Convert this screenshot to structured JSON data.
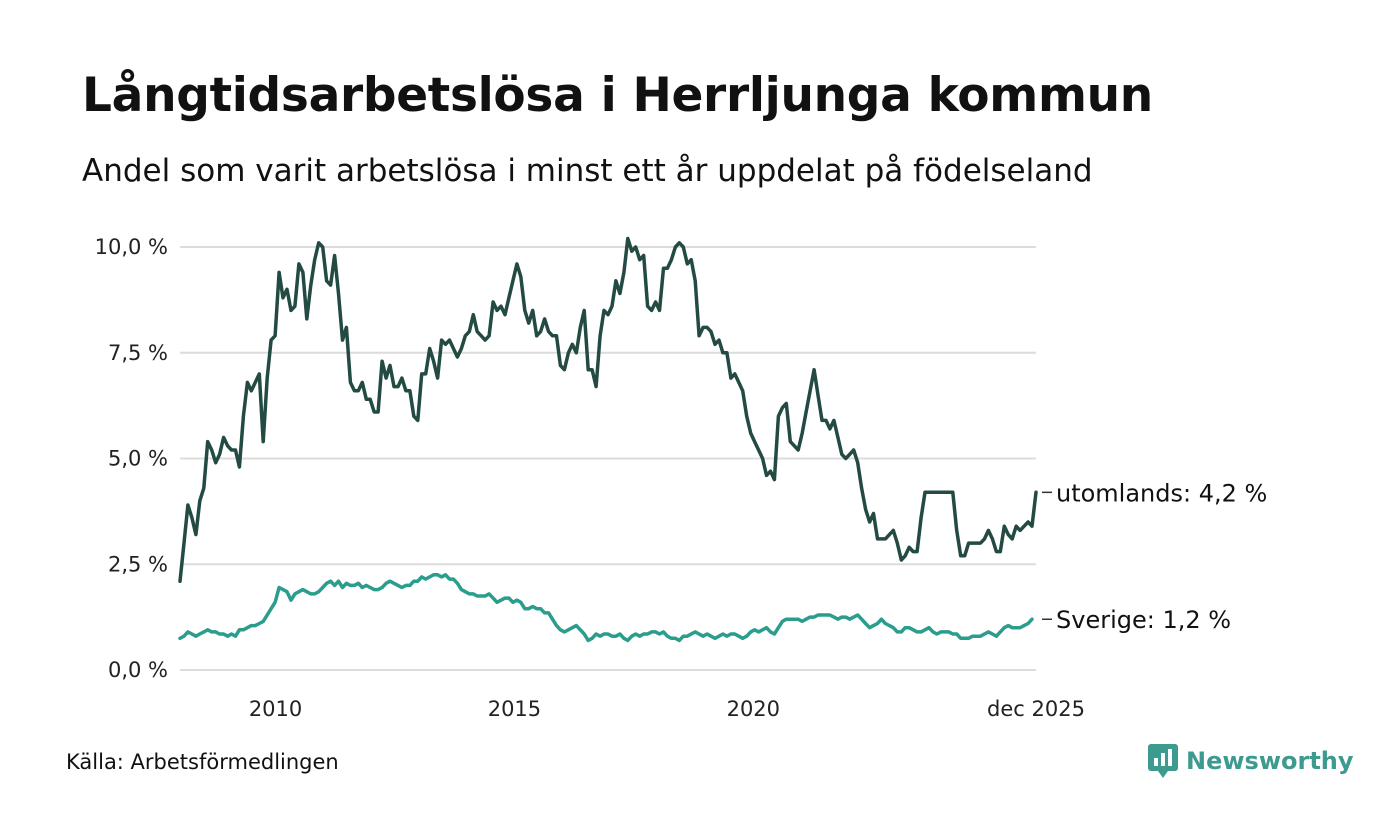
{
  "title": "Långtidsarbetslösa i Herrljunga kommun",
  "subtitle": "Andel som varit arbetslösa i minst ett år uppdelat på födelseland",
  "source": "Källa: Arbetsförmedlingen",
  "brand": "Newsworthy",
  "colors": {
    "utomlands": "#244a44",
    "sverige": "#2a9d8c",
    "grid": "#dcdcdc",
    "brand": "#3d9a8e"
  },
  "chart_data": {
    "type": "line",
    "title": "Långtidsarbetslösa i Herrljunga kommun",
    "xlabel": "",
    "ylabel": "",
    "x_start": "2008-01",
    "x_end": "2025-12",
    "frequency": "monthly",
    "xlim": [
      2008.0,
      2025.917
    ],
    "ylim": [
      0,
      10
    ],
    "y_ticks": [
      {
        "value": 0,
        "label": "0,0 %"
      },
      {
        "value": 2.5,
        "label": "2,5 %"
      },
      {
        "value": 5,
        "label": "5,0 %"
      },
      {
        "value": 7.5,
        "label": "7,5 %"
      },
      {
        "value": 10,
        "label": "10,0 %"
      }
    ],
    "x_ticks": [
      {
        "value": 2010,
        "label": "2010"
      },
      {
        "value": 2015,
        "label": "2015"
      },
      {
        "value": 2020,
        "label": "2020"
      },
      {
        "value": 2025.917,
        "label": "dec 2025"
      }
    ],
    "grid": true,
    "series": [
      {
        "name": "utomlands",
        "end_label": "utomlands: 4,2 %",
        "color": "#244a44",
        "values": [
          2.1,
          3.0,
          3.9,
          3.6,
          3.2,
          4.0,
          4.3,
          5.4,
          5.2,
          4.9,
          5.1,
          5.5,
          5.3,
          5.2,
          5.2,
          4.8,
          6.0,
          6.8,
          6.6,
          6.8,
          7.0,
          5.4,
          6.9,
          7.8,
          7.9,
          9.4,
          8.8,
          9.0,
          8.5,
          8.6,
          9.6,
          9.4,
          8.3,
          9.1,
          9.7,
          10.1,
          10.0,
          9.2,
          9.1,
          9.8,
          8.9,
          7.8,
          8.1,
          6.8,
          6.6,
          6.6,
          6.8,
          6.4,
          6.4,
          6.1,
          6.1,
          7.3,
          6.9,
          7.2,
          6.7,
          6.7,
          6.9,
          6.6,
          6.6,
          6.0,
          5.9,
          7.0,
          7.0,
          7.6,
          7.3,
          6.9,
          7.8,
          7.7,
          7.8,
          7.6,
          7.4,
          7.6,
          7.9,
          8.0,
          8.4,
          8.0,
          7.9,
          7.8,
          7.9,
          8.7,
          8.5,
          8.6,
          8.4,
          8.8,
          9.2,
          9.6,
          9.3,
          8.5,
          8.2,
          8.5,
          7.9,
          8.0,
          8.3,
          8.0,
          7.9,
          7.9,
          7.2,
          7.1,
          7.5,
          7.7,
          7.5,
          8.1,
          8.5,
          7.1,
          7.1,
          6.7,
          7.9,
          8.5,
          8.4,
          8.6,
          9.2,
          8.9,
          9.4,
          10.2,
          9.9,
          10.0,
          9.7,
          9.8,
          8.6,
          8.5,
          8.7,
          8.5,
          9.5,
          9.5,
          9.7,
          10.0,
          10.1,
          10.0,
          9.6,
          9.7,
          9.2,
          7.9,
          8.1,
          8.1,
          8.0,
          7.7,
          7.8,
          7.5,
          7.5,
          6.9,
          7.0,
          6.8,
          6.6,
          6.0,
          5.6,
          5.4,
          5.2,
          5.0,
          4.6,
          4.7,
          4.5,
          6.0,
          6.2,
          6.3,
          5.4,
          5.3,
          5.2,
          5.6,
          6.1,
          6.6,
          7.1,
          6.5,
          5.9,
          5.9,
          5.7,
          5.9,
          5.5,
          5.1,
          5.0,
          5.1,
          5.2,
          4.9,
          4.3,
          3.8,
          3.5,
          3.7,
          3.1,
          3.1,
          3.1,
          3.2,
          3.3,
          3.0,
          2.6,
          2.7,
          2.9,
          2.8,
          2.8,
          3.6,
          4.2,
          4.2,
          4.2,
          4.2,
          4.2,
          4.2,
          4.2,
          4.2,
          3.3,
          2.7,
          2.7,
          3.0,
          3.0,
          3.0,
          3.0,
          3.1,
          3.3,
          3.1,
          2.8,
          2.8,
          3.4,
          3.2,
          3.1,
          3.4,
          3.3,
          3.4,
          3.5,
          3.4,
          4.2
        ]
      },
      {
        "name": "Sverige",
        "end_label": "Sverige: 1,2 %",
        "color": "#2a9d8c",
        "values": [
          0.75,
          0.8,
          0.9,
          0.85,
          0.8,
          0.85,
          0.9,
          0.95,
          0.9,
          0.9,
          0.85,
          0.85,
          0.8,
          0.85,
          0.8,
          0.95,
          0.95,
          1.0,
          1.05,
          1.05,
          1.1,
          1.15,
          1.3,
          1.45,
          1.6,
          1.95,
          1.9,
          1.85,
          1.65,
          1.8,
          1.85,
          1.9,
          1.85,
          1.8,
          1.8,
          1.85,
          1.95,
          2.05,
          2.1,
          2.0,
          2.1,
          1.95,
          2.05,
          2.0,
          2.0,
          2.05,
          1.95,
          2.0,
          1.95,
          1.9,
          1.9,
          1.95,
          2.05,
          2.1,
          2.05,
          2.0,
          1.95,
          2.0,
          2.0,
          2.1,
          2.1,
          2.2,
          2.15,
          2.2,
          2.25,
          2.25,
          2.2,
          2.25,
          2.15,
          2.15,
          2.05,
          1.9,
          1.85,
          1.8,
          1.8,
          1.75,
          1.75,
          1.75,
          1.8,
          1.7,
          1.6,
          1.65,
          1.7,
          1.7,
          1.6,
          1.65,
          1.6,
          1.45,
          1.45,
          1.5,
          1.45,
          1.45,
          1.35,
          1.35,
          1.2,
          1.05,
          0.95,
          0.9,
          0.95,
          1.0,
          1.05,
          0.95,
          0.85,
          0.7,
          0.75,
          0.85,
          0.8,
          0.85,
          0.85,
          0.8,
          0.8,
          0.85,
          0.75,
          0.7,
          0.8,
          0.85,
          0.8,
          0.85,
          0.85,
          0.9,
          0.9,
          0.85,
          0.9,
          0.8,
          0.75,
          0.75,
          0.7,
          0.8,
          0.8,
          0.85,
          0.9,
          0.85,
          0.8,
          0.85,
          0.8,
          0.75,
          0.8,
          0.85,
          0.8,
          0.85,
          0.85,
          0.8,
          0.75,
          0.8,
          0.9,
          0.95,
          0.9,
          0.95,
          1.0,
          0.9,
          0.85,
          1.0,
          1.15,
          1.2,
          1.2,
          1.2,
          1.2,
          1.15,
          1.2,
          1.25,
          1.25,
          1.3,
          1.3,
          1.3,
          1.3,
          1.25,
          1.2,
          1.25,
          1.25,
          1.2,
          1.25,
          1.3,
          1.2,
          1.1,
          1.0,
          1.05,
          1.1,
          1.2,
          1.1,
          1.05,
          1.0,
          0.9,
          0.9,
          1.0,
          1.0,
          0.95,
          0.9,
          0.9,
          0.95,
          1.0,
          0.9,
          0.85,
          0.9,
          0.9,
          0.9,
          0.85,
          0.85,
          0.75,
          0.75,
          0.75,
          0.8,
          0.8,
          0.8,
          0.85,
          0.9,
          0.85,
          0.8,
          0.9,
          1.0,
          1.05,
          1.0,
          1.0,
          1.0,
          1.05,
          1.1,
          1.2
        ]
      }
    ]
  }
}
